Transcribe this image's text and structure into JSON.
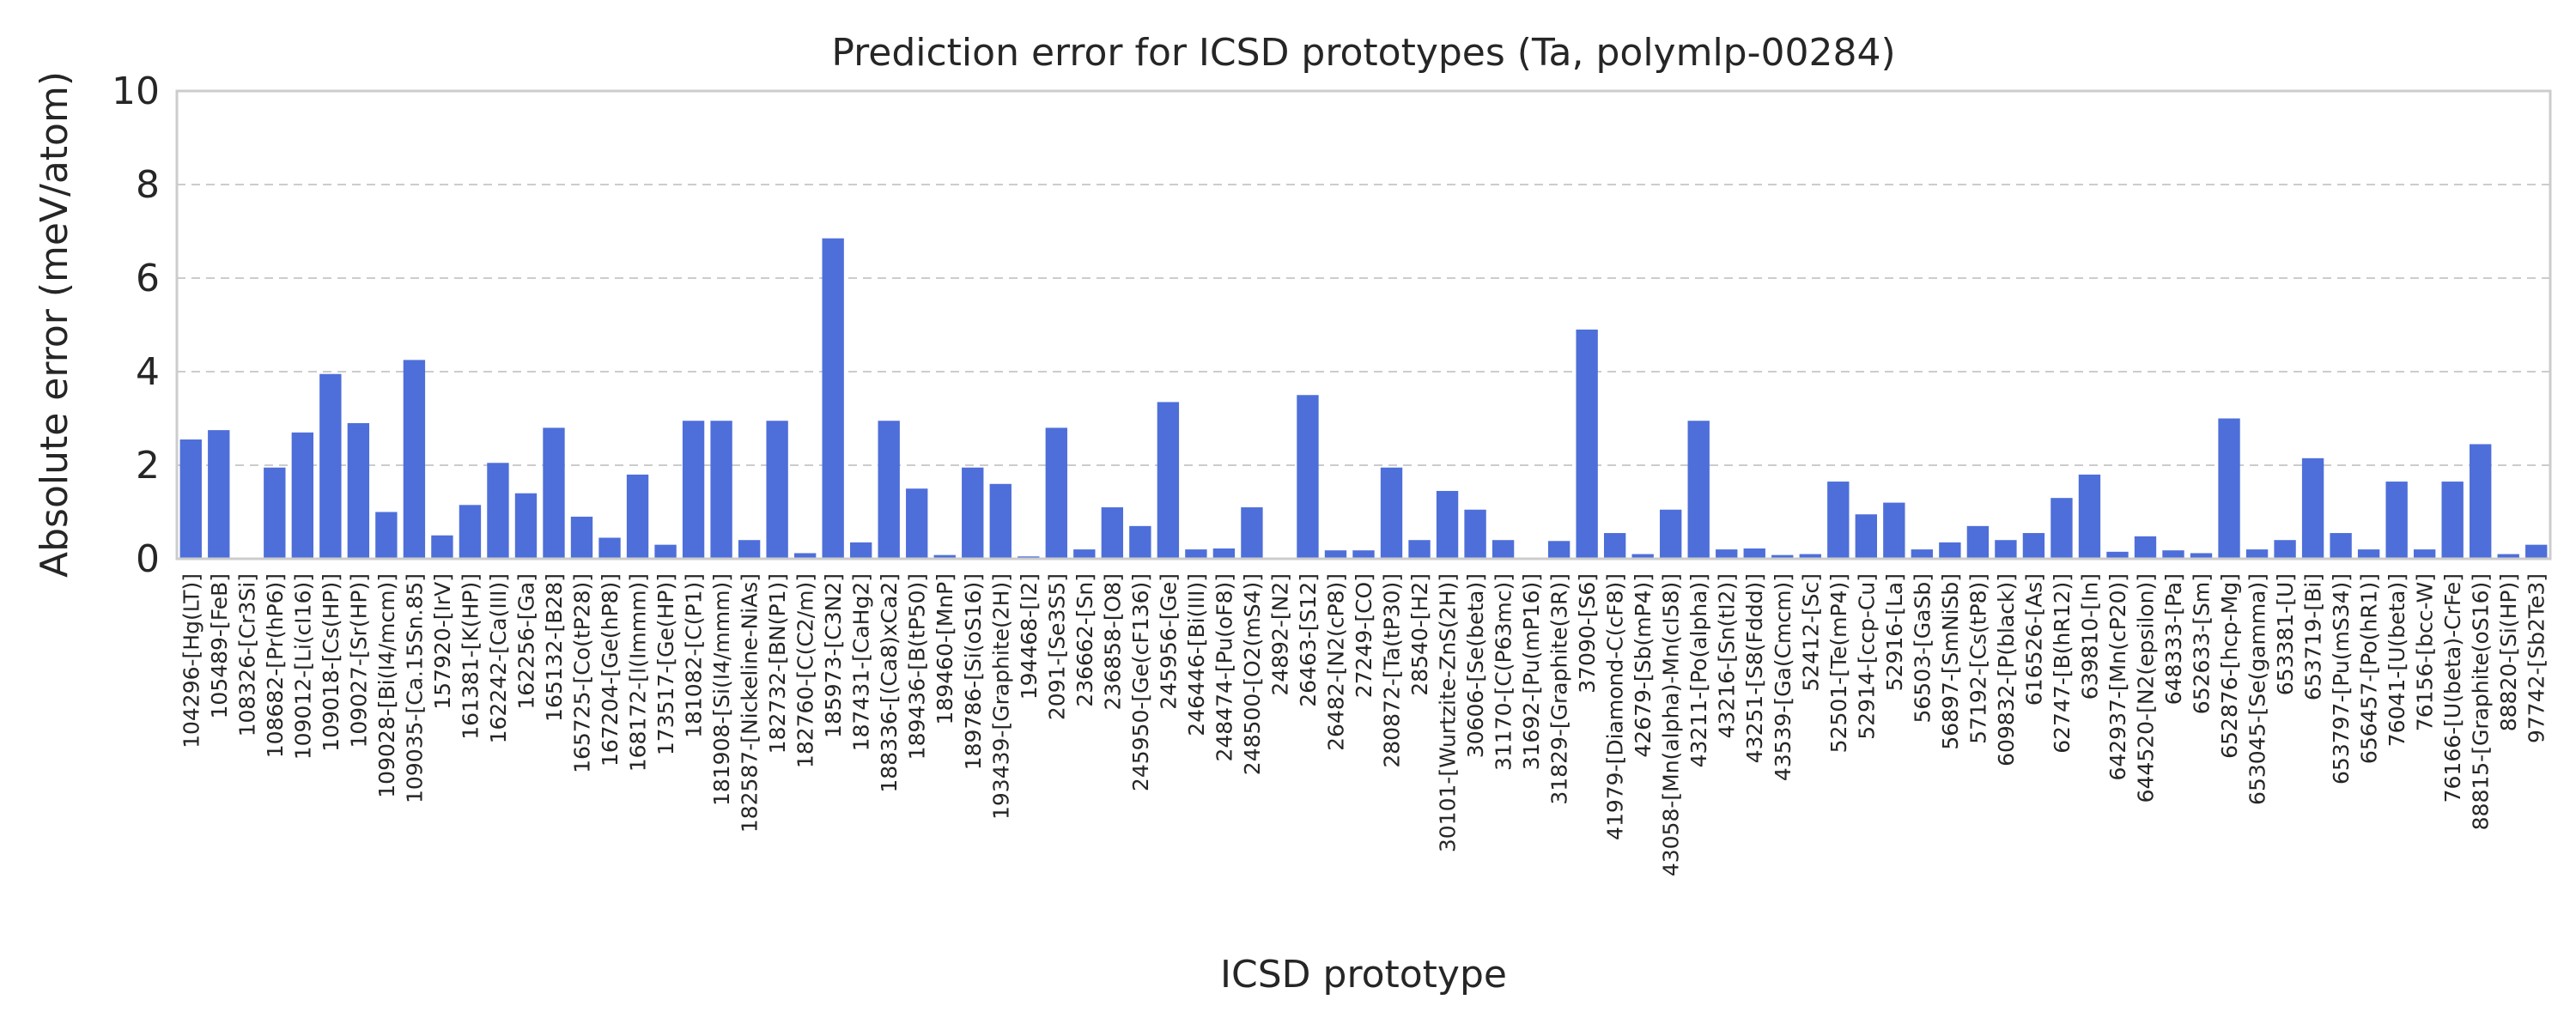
{
  "chart_data": {
    "type": "bar",
    "title": "Prediction error for ICSD prototypes (Ta, polymlp-00284)",
    "xlabel": "ICSD prototype",
    "ylabel": "Absolute error (meV/atom)",
    "ylim": [
      0,
      10
    ],
    "yticks": [
      0,
      2,
      4,
      6,
      8,
      10
    ],
    "grid": true,
    "bar_color": "#4e6fd9",
    "categories": [
      "104296-[Hg(LT)]",
      "105489-[FeB]",
      "108326-[Cr3Si]",
      "108682-[Pr(hP6)]",
      "109012-[Li(cI16)]",
      "109018-[Cs(HP)]",
      "109027-[Sr(HP)]",
      "109028-[Bi(I4/mcm)]",
      "109035-[Ca.15Sn.85]",
      "157920-[IrV]",
      "161381-[K(HP)]",
      "162242-[Ca(III)]",
      "162256-[Ga]",
      "165132-[B28]",
      "165725-[Co(tP28)]",
      "167204-[Ge(hP8)]",
      "168172-[I(Immm)]",
      "173517-[Ge(HP)]",
      "181082-[C(P1)]",
      "181908-[Si(I4/mmm)]",
      "182587-[Nickeline-NiAs]",
      "182732-[BN(P1)]",
      "182760-[C(C2/m)]",
      "185973-[C3N2]",
      "187431-[CaHg2]",
      "188336-[(Ca8)xCa2]",
      "189436-[B(tP50)]",
      "189460-[MnP]",
      "189786-[Si(oS16)]",
      "193439-[Graphite(2H)]",
      "194468-[I2]",
      "2091-[Se3S5]",
      "236662-[Sn]",
      "236858-[O8]",
      "245950-[Ge(cF136)]",
      "245956-[Ge]",
      "246446-[Bi(III)]",
      "248474-[Pu(oF8)]",
      "248500-[O2(mS4)]",
      "24892-[N2]",
      "26463-[S12]",
      "26482-[N2(cP8)]",
      "27249-[CO]",
      "280872-[Ta(tP30)]",
      "28540-[H2]",
      "30101-[Wurtzite-ZnS(2H)]",
      "30606-[Se(beta)]",
      "31170-[C(P63mc)]",
      "31692-[Pu(mP16)]",
      "31829-[Graphite(3R)]",
      "37090-[S6]",
      "41979-[Diamond-C(cF8)]",
      "42679-[Sb(mP4)]",
      "43058-[Mn(alpha)-Mn(cI58)]",
      "43211-[Po(alpha)]",
      "43216-[Sn(tI2)]",
      "43251-[S8(Fddd)]",
      "43539-[Ga(Cmcm)]",
      "52412-[Sc]",
      "52501-[Te(mP4)]",
      "52914-[ccp-Cu]",
      "52916-[La]",
      "56503-[GaSb]",
      "56897-[SmNiSb]",
      "57192-[Cs(tP8)]",
      "609832-[P(black)]",
      "616526-[As]",
      "62747-[B(hR12)]",
      "639810-[In]",
      "642937-[Mn(cP20)]",
      "644520-[N2(epsilon)]",
      "648333-[Pa]",
      "652633-[Sm]",
      "652876-[hcp-Mg]",
      "653045-[Se(gamma)]",
      "653381-[U]",
      "653719-[Bi]",
      "653797-[Pu(mS34)]",
      "656457-[Po(hR1)]",
      "76041-[U(beta)]",
      "76156-[bcc-W]",
      "76166-[U(beta)-CrFe]",
      "88815-[Graphite(oS16)]",
      "88820-[Si(HP)]",
      "97742-[Sb2Te3]"
    ],
    "values": [
      2.55,
      2.75,
      0.02,
      1.95,
      2.7,
      3.95,
      2.9,
      1.0,
      4.25,
      0.5,
      1.15,
      2.05,
      1.4,
      2.8,
      0.9,
      0.45,
      1.8,
      0.3,
      2.95,
      2.95,
      0.4,
      2.95,
      0.12,
      6.85,
      0.35,
      2.95,
      1.5,
      0.08,
      1.95,
      1.6,
      0.05,
      2.8,
      0.2,
      1.1,
      0.7,
      3.35,
      0.2,
      0.22,
      1.1,
      0.02,
      3.5,
      0.18,
      0.18,
      1.95,
      0.4,
      1.45,
      1.05,
      0.4,
      0.02,
      0.38,
      4.9,
      0.55,
      0.1,
      1.05,
      2.95,
      0.2,
      0.22,
      0.08,
      0.1,
      1.65,
      0.95,
      1.2,
      0.2,
      0.35,
      0.7,
      0.4,
      0.55,
      1.3,
      1.8,
      0.15,
      0.48,
      0.18,
      0.12,
      3.0,
      0.2,
      0.4,
      2.15,
      0.55,
      0.2,
      1.65,
      0.2,
      1.65,
      2.45,
      0.1,
      0.3
    ]
  }
}
